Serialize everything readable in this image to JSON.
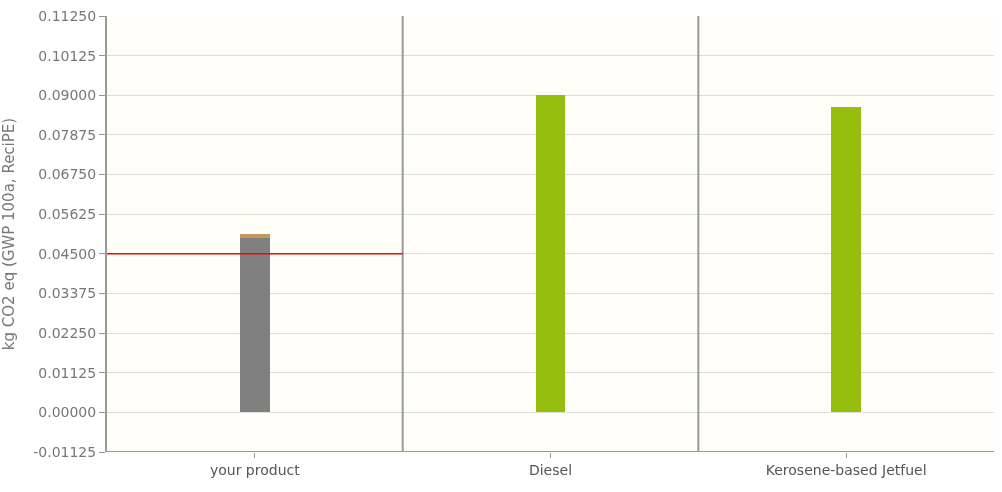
{
  "chart_data": {
    "type": "bar",
    "stacked": true,
    "ylabel": "kg CO2 eq (GWP 100a, ReciPE)",
    "categories": [
      "your product",
      "Diesel",
      "Kerosene-based Jetfuel"
    ],
    "series": [
      {
        "color": "#808080",
        "values": [
          0.0494,
          null,
          null
        ]
      },
      {
        "color": "#c8965a",
        "values": [
          0.0011,
          null,
          null
        ]
      },
      {
        "color": "#96be0f",
        "values": [
          null,
          0.09,
          0.0868
        ]
      }
    ],
    "ylim": [
      -0.01125,
      0.1125
    ],
    "yticks": [
      {
        "value": -0.01125,
        "label": "-0.01125"
      },
      {
        "value": 0,
        "label": "0.00000"
      },
      {
        "value": 0.01125,
        "label": "0.01125"
      },
      {
        "value": 0.0225,
        "label": "0.02250"
      },
      {
        "value": 0.03375,
        "label": "0.03375"
      },
      {
        "value": 0.045,
        "label": "0.04500"
      },
      {
        "value": 0.05625,
        "label": "0.05625"
      },
      {
        "value": 0.0675,
        "label": "0.06750"
      },
      {
        "value": 0.07875,
        "label": "0.07875"
      },
      {
        "value": 0.09,
        "label": "0.09000"
      },
      {
        "value": 0.10125,
        "label": "0.10125"
      },
      {
        "value": 0.1125,
        "label": "0.11250"
      }
    ],
    "grid": "y",
    "ref_lines": [
      {
        "axis": "y",
        "value": 0.045,
        "color": "#ff0000"
      }
    ]
  }
}
